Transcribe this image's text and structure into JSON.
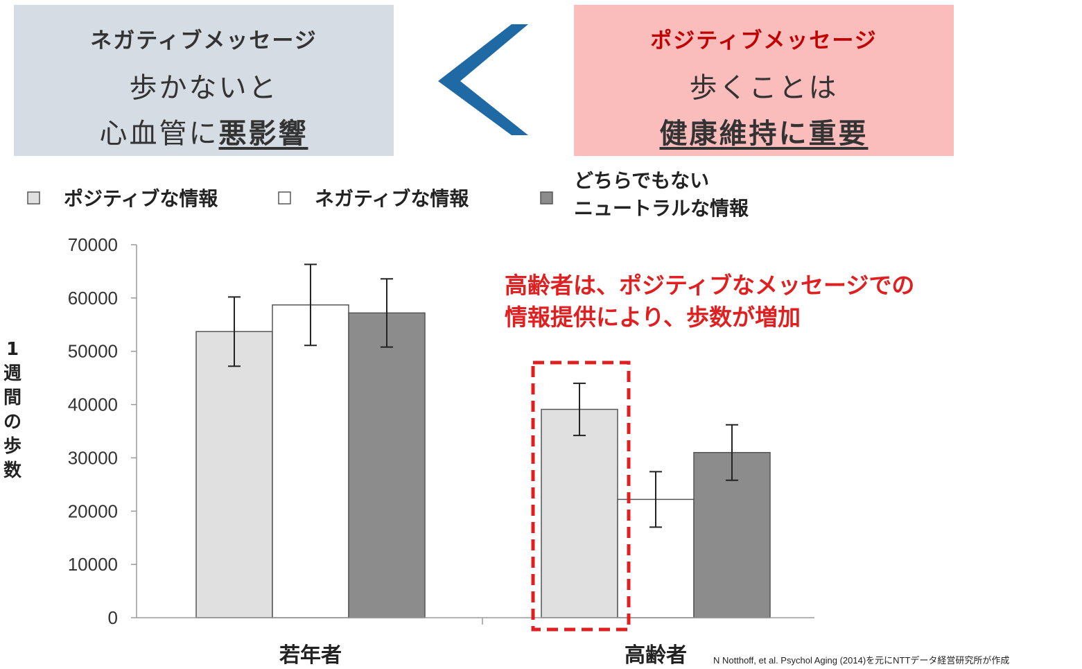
{
  "negative_box": {
    "title": "ネガティブメッセージ",
    "line1": "歩かないと",
    "line2_prefix": "心血管に",
    "line2_emphasis": "悪影響"
  },
  "comparison_symbol": "less-than-chevron-icon",
  "positive_box": {
    "title": "ポジティブメッセージ",
    "line1": "歩くことは",
    "line2": "健康維持に重要"
  },
  "colors": {
    "negative_box_bg": "#d6dce4",
    "positive_box_bg": "#fbbcbc",
    "positive_title": "#c00000",
    "chevron": "#1f6aa5",
    "annotation": "#e02020",
    "bar_positive": "#e0e0e0",
    "bar_negative": "#ffffff",
    "bar_neutral": "#8c8c8c"
  },
  "chart_data": {
    "type": "bar",
    "ylabel": "1週間の歩数",
    "xlabel": "",
    "ylim": [
      0,
      70000
    ],
    "yticks": [
      0,
      10000,
      20000,
      30000,
      40000,
      50000,
      60000,
      70000
    ],
    "grid": false,
    "legend_position": "top",
    "categories": [
      "若年者",
      "高齢者"
    ],
    "series": [
      {
        "name": "ポジティブな情報",
        "color": "#e0e0e0",
        "values": [
          53700,
          39100
        ],
        "errors": [
          6500,
          4900
        ]
      },
      {
        "name": "ネガティブな情報",
        "color": "#ffffff",
        "values": [
          58700,
          22200
        ],
        "errors": [
          7600,
          5200
        ]
      },
      {
        "name": "どちらでもない ニュートラルな情報",
        "legend_lines": [
          "どちらでもない",
          "ニュートラルな情報"
        ],
        "color": "#8c8c8c",
        "values": [
          57200,
          31000
        ],
        "errors": [
          6400,
          5200
        ]
      }
    ],
    "annotation": {
      "lines": [
        "高齢者は、ポジティブなメッセージでの",
        "情報提供により、歩数が増加"
      ],
      "highlight": "高齢者 ポジティブな情報 (dashed box)"
    }
  },
  "source_note": "N Notthoff, et al. Psychol Aging (2014)を元にNTTデータ経営研究所が作成"
}
